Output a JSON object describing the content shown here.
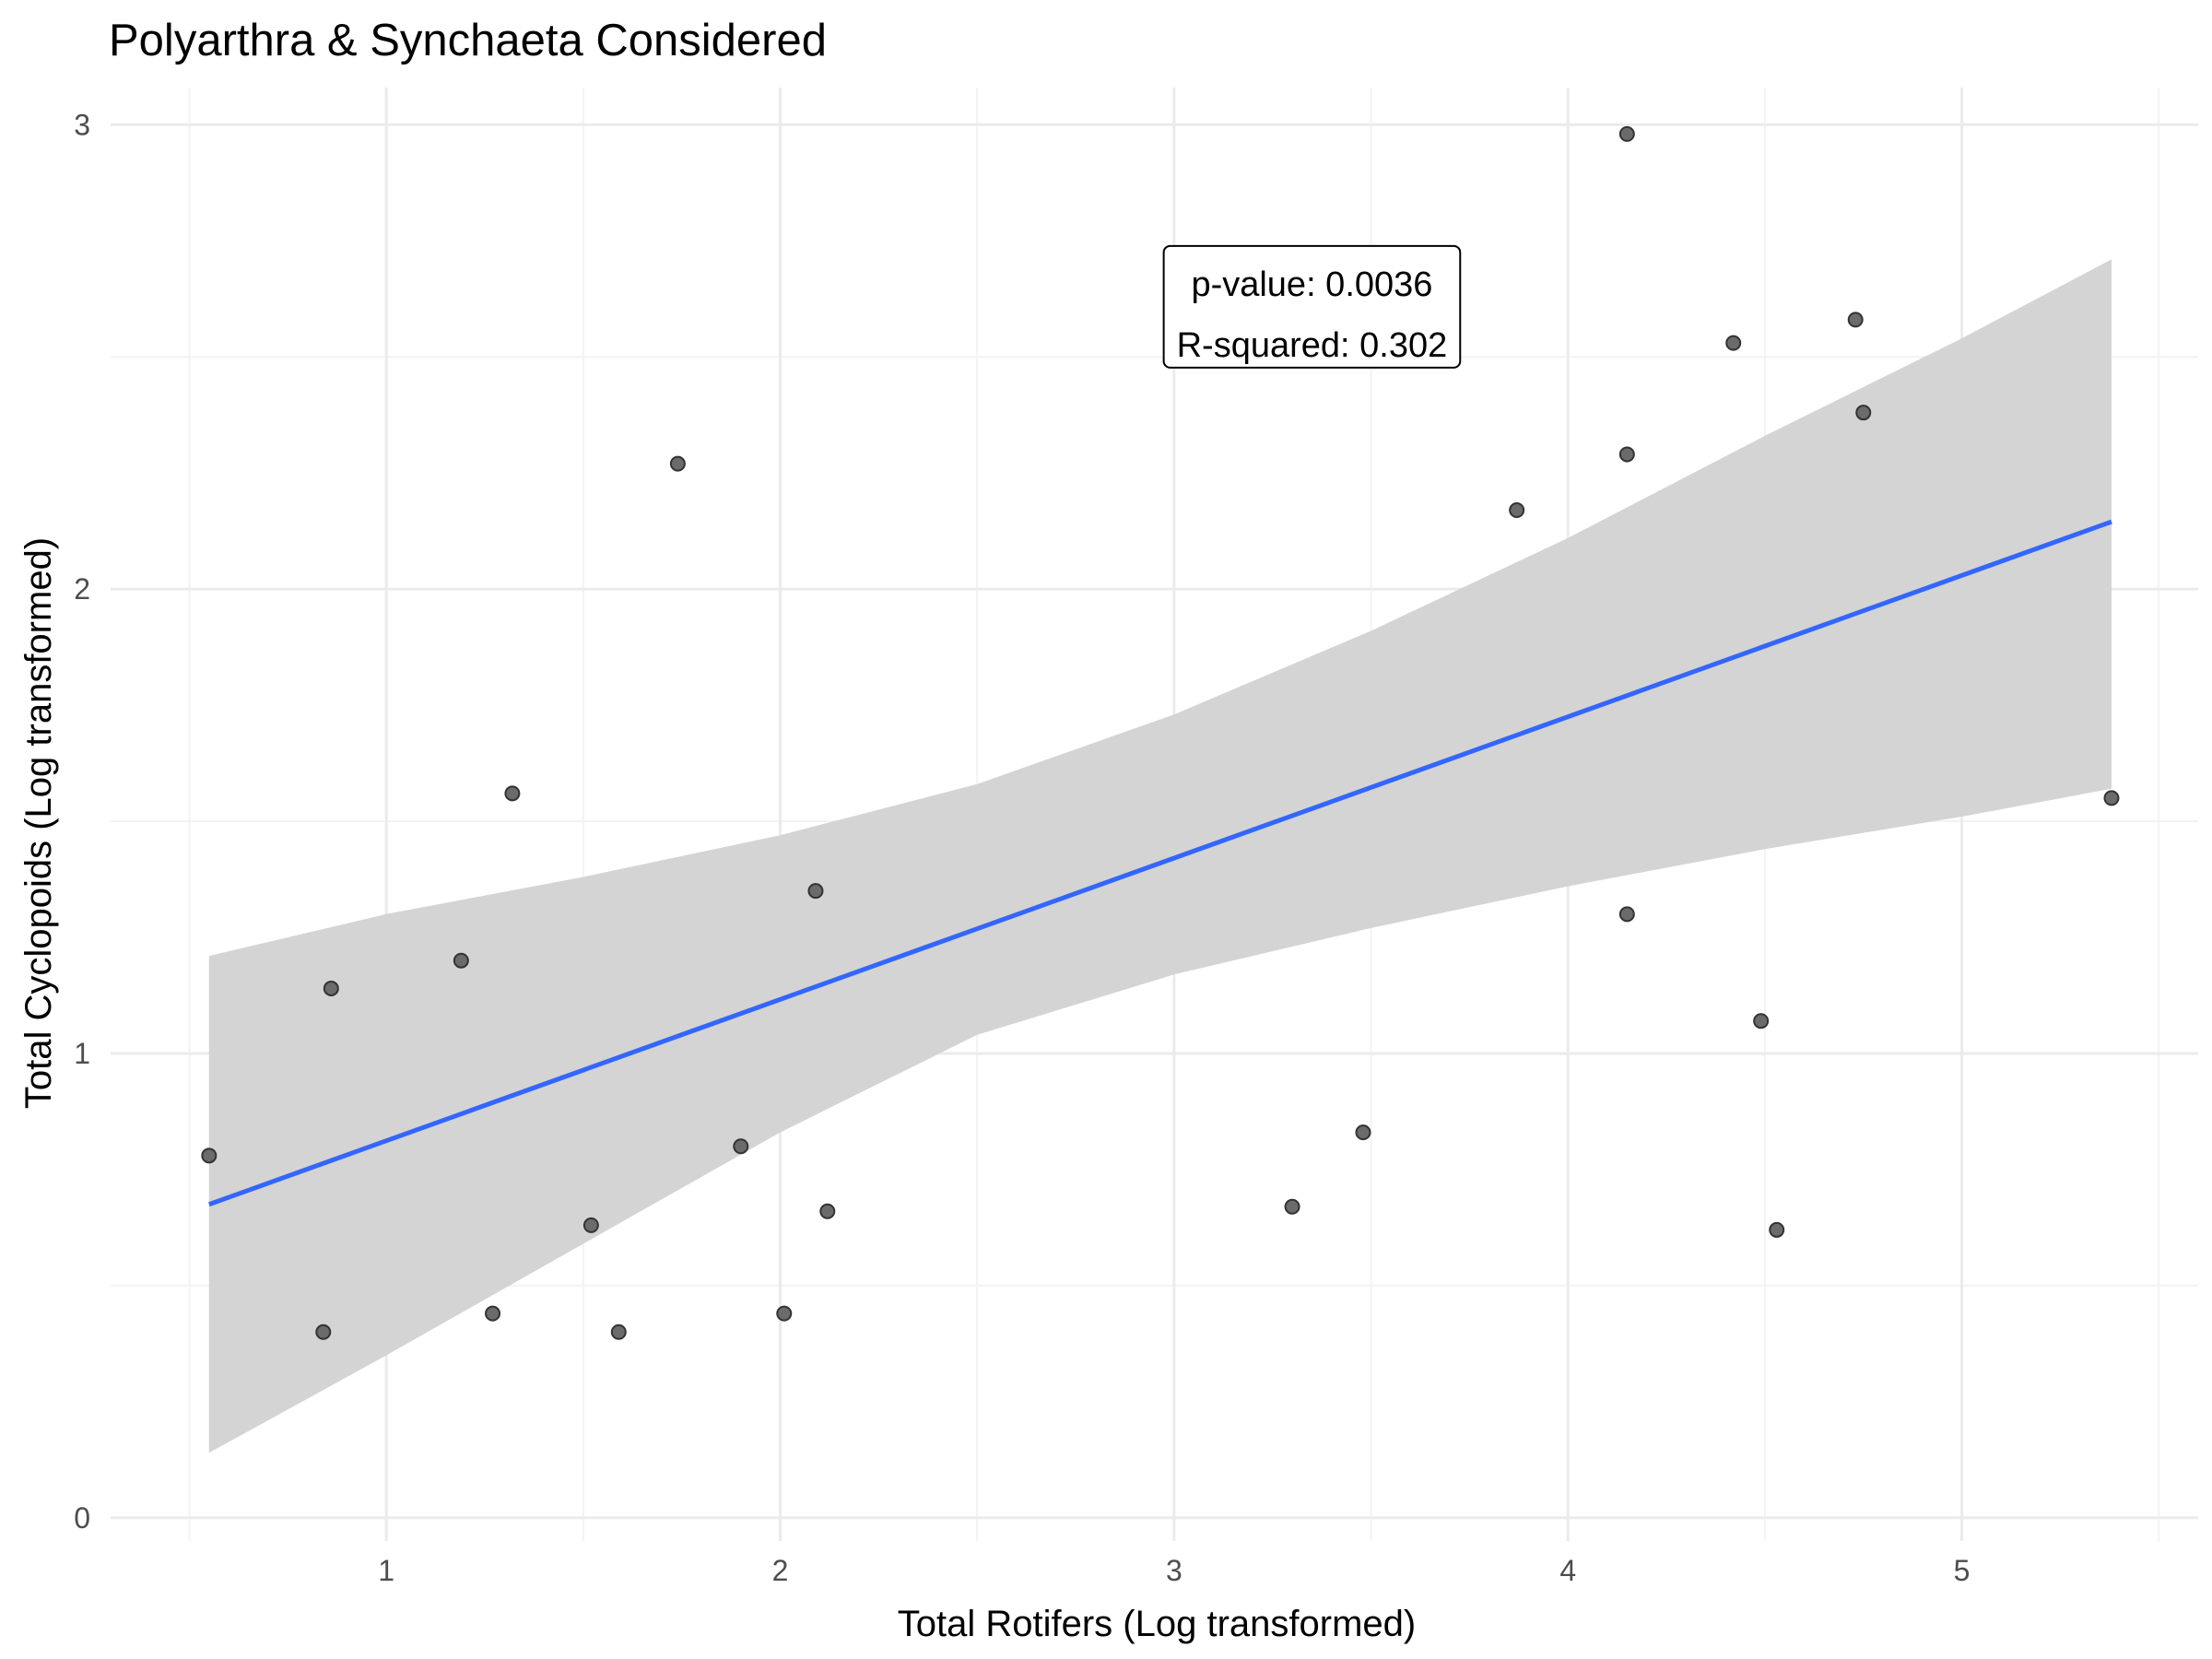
{
  "chart_data": {
    "type": "scatter",
    "title": "Polyarthra & Synchaeta Considered",
    "xlabel": "Total Rotifers (Log transformed)",
    "ylabel": "Total Cyclopoids (Log transformed)",
    "xlim": [
      0.3,
      5.6
    ],
    "ylim": [
      -0.05,
      3.08
    ],
    "x_ticks": [
      1,
      2,
      3,
      4,
      5
    ],
    "y_ticks": [
      0,
      1,
      2,
      3
    ],
    "grid": true,
    "points": [
      {
        "x": 0.55,
        "y": 0.78
      },
      {
        "x": 0.84,
        "y": 0.4
      },
      {
        "x": 0.86,
        "y": 1.14
      },
      {
        "x": 1.19,
        "y": 1.2
      },
      {
        "x": 1.27,
        "y": 0.44
      },
      {
        "x": 1.32,
        "y": 1.56
      },
      {
        "x": 1.52,
        "y": 0.63
      },
      {
        "x": 1.59,
        "y": 0.4
      },
      {
        "x": 1.74,
        "y": 2.27
      },
      {
        "x": 1.9,
        "y": 0.8
      },
      {
        "x": 2.01,
        "y": 0.44
      },
      {
        "x": 2.09,
        "y": 1.35
      },
      {
        "x": 2.12,
        "y": 0.66
      },
      {
        "x": 3.3,
        "y": 0.67
      },
      {
        "x": 3.48,
        "y": 0.83
      },
      {
        "x": 3.87,
        "y": 2.17
      },
      {
        "x": 4.15,
        "y": 2.98
      },
      {
        "x": 4.15,
        "y": 2.29
      },
      {
        "x": 4.15,
        "y": 1.3
      },
      {
        "x": 4.42,
        "y": 2.53
      },
      {
        "x": 4.49,
        "y": 1.07
      },
      {
        "x": 4.53,
        "y": 0.62
      },
      {
        "x": 4.73,
        "y": 2.58
      },
      {
        "x": 4.75,
        "y": 2.38
      },
      {
        "x": 5.38,
        "y": 1.55
      }
    ],
    "fit_line": {
      "x": [
        0.55,
        5.38
      ],
      "y": [
        0.675,
        2.145
      ],
      "color": "#3366ff"
    },
    "confidence_band": {
      "x": [
        0.55,
        1.0,
        1.5,
        2.0,
        2.5,
        3.0,
        3.5,
        4.0,
        4.5,
        5.0,
        5.38
      ],
      "upper": [
        1.21,
        1.3,
        1.38,
        1.47,
        1.58,
        1.73,
        1.91,
        2.11,
        2.33,
        2.54,
        2.71
      ],
      "lower": [
        0.14,
        0.35,
        0.59,
        0.83,
        1.04,
        1.17,
        1.27,
        1.36,
        1.44,
        1.51,
        1.57
      ],
      "color": "#d4d4d4"
    },
    "annotation": {
      "lines": [
        "p-value: 0.0036",
        "R-squared: 0.302"
      ],
      "x": 3.35,
      "y": 2.6
    },
    "colors": {
      "point_fill": "#6b6b6b",
      "point_stroke": "#333333",
      "grid_major": "#ebebeb",
      "grid_minor": "#f3f3f3"
    }
  }
}
